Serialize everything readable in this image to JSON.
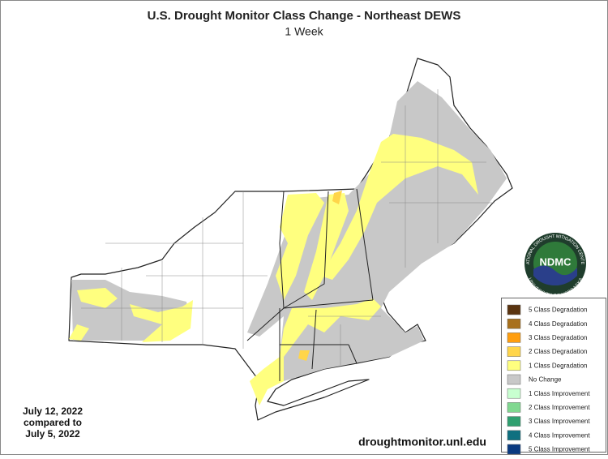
{
  "header": {
    "title": "U.S. Drought Monitor Class Change - Northeast DEWS",
    "subtitle": "1 Week"
  },
  "legend": {
    "items": [
      {
        "label": "5 Class Degradation",
        "color": "#5a3410"
      },
      {
        "label": "4 Class Degradation",
        "color": "#a8701c"
      },
      {
        "label": "3 Class Degradation",
        "color": "#ff9e0f"
      },
      {
        "label": "2 Class Degradation",
        "color": "#ffd54a"
      },
      {
        "label": "1 Class Degradation",
        "color": "#ffff7f"
      },
      {
        "label": "No Change",
        "color": "#c8c8c8"
      },
      {
        "label": "1 Class Improvement",
        "color": "#c8ffd0"
      },
      {
        "label": "2 Class Improvement",
        "color": "#80d890"
      },
      {
        "label": "3 Class Improvement",
        "color": "#30a070"
      },
      {
        "label": "4 Class Improvement",
        "color": "#107080"
      },
      {
        "label": "5 Class Improvement",
        "color": "#0a3a80"
      }
    ]
  },
  "dates": [
    "July 12, 2022",
    "compared to",
    "July 5, 2022"
  ],
  "source": "droughtmonitor.unl.edu",
  "logo": {
    "text": "NDMC",
    "ring_top": "NATIONAL DROUGHT MITIGATION CENTER",
    "ring_bottom": "UNIVERSITY OF NEBRASKA"
  }
}
